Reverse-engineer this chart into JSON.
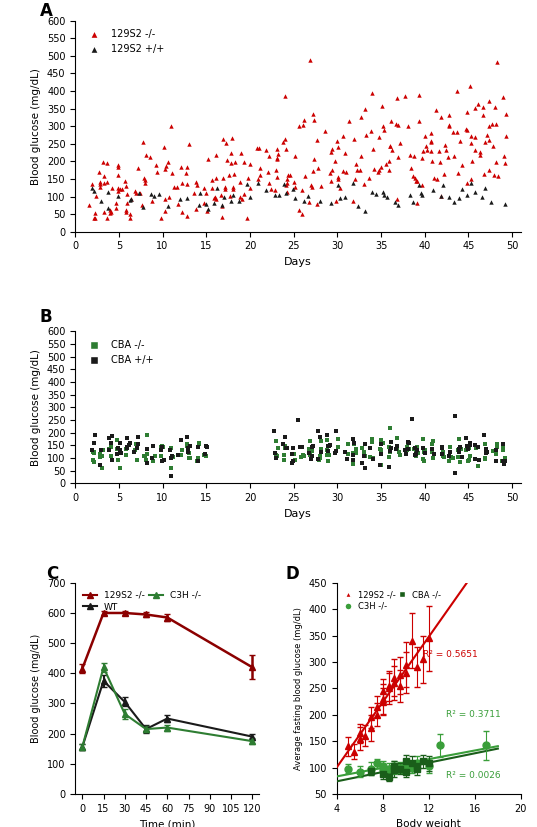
{
  "panel_A": {
    "ylabel": "Blood glucose (mg/dL)",
    "xlabel": "Days",
    "ylim": [
      0,
      600
    ],
    "yticks": [
      0,
      50,
      100,
      150,
      200,
      250,
      300,
      350,
      400,
      450,
      500,
      550,
      600
    ],
    "xlim": [
      0,
      51
    ],
    "xticks": [
      0,
      5,
      10,
      15,
      20,
      25,
      30,
      35,
      40,
      45,
      50
    ],
    "legend": [
      "129S2 -/-",
      "129S2 +/+"
    ],
    "colors": [
      "#cc0000",
      "#1a1a1a"
    ]
  },
  "panel_B": {
    "ylabel": "Blood glucose (mg/dL)",
    "xlabel": "Days",
    "ylim": [
      0,
      600
    ],
    "yticks": [
      0,
      50,
      100,
      150,
      200,
      250,
      300,
      350,
      400,
      450,
      500,
      550,
      600
    ],
    "xlim": [
      0,
      51
    ],
    "xticks": [
      0,
      5,
      10,
      15,
      20,
      25,
      30,
      35,
      40,
      45,
      50
    ],
    "legend": [
      "CBA -/-",
      "CBA +/+"
    ],
    "colors": [
      "#2e7d32",
      "#1a1a1a"
    ]
  },
  "panel_C": {
    "ylabel": "Blood glucose (mg/dL)",
    "xlabel": "Time (min)",
    "ylim": [
      0,
      700
    ],
    "yticks": [
      0,
      100,
      200,
      300,
      400,
      500,
      600,
      700
    ],
    "xlim": [
      -5,
      125
    ],
    "xticks": [
      0,
      15,
      30,
      45,
      60,
      75,
      90,
      105,
      120
    ],
    "legend": [
      "129S2 -/-",
      "WT",
      "C3H -/-"
    ],
    "colors": [
      "#8b0000",
      "#1a1a1a",
      "#2e7d32"
    ],
    "x": [
      0,
      15,
      30,
      45,
      60,
      120
    ],
    "y_129S2": [
      415,
      600,
      600,
      595,
      585,
      420
    ],
    "y_WT": [
      155,
      375,
      305,
      215,
      250,
      190
    ],
    "y_C3H": [
      155,
      420,
      265,
      215,
      220,
      175
    ],
    "err_129S2": [
      15,
      8,
      8,
      8,
      10,
      40
    ],
    "err_WT": [
      10,
      20,
      15,
      12,
      12,
      10
    ],
    "err_C3H": [
      10,
      15,
      15,
      10,
      10,
      10
    ]
  },
  "panel_D": {
    "ylabel": "Average fasting blood glucose (mg/dL)",
    "xlabel": "Body weight",
    "ylim": [
      50,
      450
    ],
    "yticks": [
      50,
      100,
      150,
      200,
      250,
      300,
      350,
      400,
      450
    ],
    "xlim": [
      4,
      20
    ],
    "xticks": [
      4,
      8,
      12,
      16,
      20
    ],
    "legend": [
      "129S2 -/-",
      "C3H -/-",
      "CBA -/-"
    ],
    "colors": [
      "#cc0000",
      "#3a9e3a",
      "#1a5e1a"
    ],
    "r2_129S2": "R² = 0.5651",
    "r2_C3H": "R² = 0.3711",
    "r2_CBA": "R² = 0.0026",
    "r2_color_129S2": "#cc0000",
    "r2_color_C3H": "#3a9e3a",
    "r2_color_CBA": "#3a9e3a"
  }
}
